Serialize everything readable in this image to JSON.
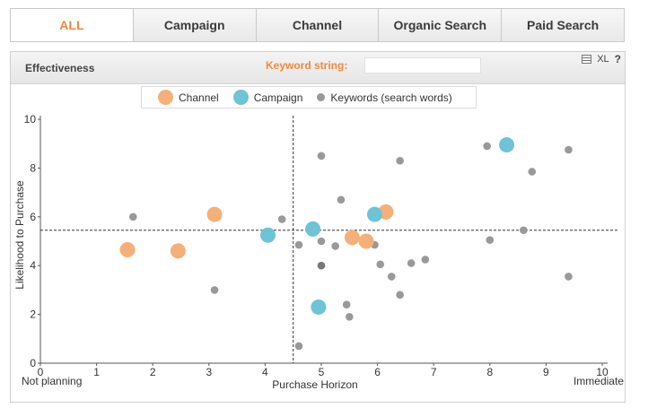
{
  "tabs": [
    {
      "label": "ALL"
    },
    {
      "label": "Campaign"
    },
    {
      "label": "Channel"
    },
    {
      "label": "Organic Search"
    },
    {
      "label": "Paid Search"
    }
  ],
  "panel": {
    "title": "Effectiveness",
    "keyword_label": "Keyword string:",
    "keyword_value": "",
    "xl_label": "XL",
    "help_label": "?"
  },
  "legend": [
    {
      "label": "Channel",
      "color": "#f5b07a"
    },
    {
      "label": "Campaign",
      "color": "#6ec3d6"
    },
    {
      "label": "Keywords (search words)",
      "color": "#999999"
    }
  ],
  "chart_data": {
    "type": "scatter",
    "xlabel": "Purchase Horizon",
    "ylabel": "Likelihood to Purchase",
    "x_left_label": "Not planning",
    "x_right_label": "Immediate",
    "xlim": [
      0,
      10
    ],
    "ylim": [
      0,
      10
    ],
    "x_ticks": [
      "0",
      "1",
      "2",
      "3",
      "4",
      "5",
      "6",
      "7",
      "8",
      "9",
      "10"
    ],
    "y_ticks": [
      "0",
      "2",
      "4",
      "6",
      "8",
      "10"
    ],
    "reference_lines": {
      "x": 4.5,
      "y": 5.45
    },
    "series": [
      {
        "name": "Channel",
        "color": "#f5b07a",
        "size": "large",
        "points": [
          [
            1.55,
            4.65
          ],
          [
            2.45,
            4.6
          ],
          [
            3.1,
            6.1
          ],
          [
            5.55,
            5.15
          ],
          [
            5.8,
            5.0
          ],
          [
            6.15,
            6.2
          ]
        ]
      },
      {
        "name": "Campaign",
        "color": "#6ec3d6",
        "size": "large",
        "points": [
          [
            4.05,
            5.25
          ],
          [
            4.85,
            5.5
          ],
          [
            4.95,
            2.3
          ],
          [
            5.95,
            6.1
          ],
          [
            8.3,
            8.95
          ]
        ]
      },
      {
        "name": "Keywords (search words)",
        "color": "#999999",
        "size": "small",
        "points": [
          [
            1.65,
            6.0
          ],
          [
            3.1,
            3.0
          ],
          [
            4.3,
            5.9
          ],
          [
            4.6,
            0.7
          ],
          [
            4.6,
            4.85
          ],
          [
            5.0,
            8.5
          ],
          [
            5.0,
            5.0
          ],
          [
            5.0,
            4.0
          ],
          [
            5.25,
            4.8
          ],
          [
            5.35,
            6.7
          ],
          [
            5.45,
            2.4
          ],
          [
            5.5,
            1.9
          ],
          [
            5.95,
            4.85
          ],
          [
            6.05,
            4.05
          ],
          [
            6.25,
            3.55
          ],
          [
            6.4,
            8.3
          ],
          [
            6.4,
            2.8
          ],
          [
            6.6,
            4.1
          ],
          [
            6.85,
            4.25
          ],
          [
            7.95,
            8.9
          ],
          [
            8.0,
            5.05
          ],
          [
            8.6,
            5.45
          ],
          [
            8.75,
            7.85
          ],
          [
            9.4,
            8.75
          ],
          [
            9.4,
            3.55
          ]
        ]
      }
    ]
  }
}
